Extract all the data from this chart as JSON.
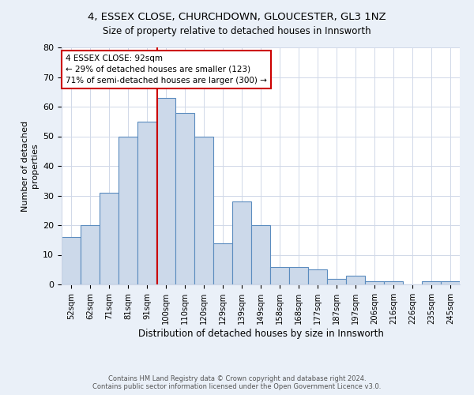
{
  "title1": "4, ESSEX CLOSE, CHURCHDOWN, GLOUCESTER, GL3 1NZ",
  "title2": "Size of property relative to detached houses in Innsworth",
  "xlabel": "Distribution of detached houses by size in Innsworth",
  "ylabel": "Number of detached\nproperties",
  "bar_labels": [
    "52sqm",
    "62sqm",
    "71sqm",
    "81sqm",
    "91sqm",
    "100sqm",
    "110sqm",
    "120sqm",
    "129sqm",
    "139sqm",
    "149sqm",
    "158sqm",
    "168sqm",
    "177sqm",
    "187sqm",
    "197sqm",
    "206sqm",
    "216sqm",
    "226sqm",
    "235sqm",
    "245sqm"
  ],
  "bar_values": [
    16,
    20,
    31,
    50,
    55,
    63,
    58,
    50,
    14,
    28,
    20,
    6,
    6,
    5,
    2,
    3,
    1,
    1,
    0,
    1,
    1
  ],
  "bar_color": "#ccd9ea",
  "bar_edge_color": "#5b8cbf",
  "vline_x": 4.55,
  "vline_color": "#cc0000",
  "annotation_text": "4 ESSEX CLOSE: 92sqm\n← 29% of detached houses are smaller (123)\n71% of semi-detached houses are larger (300) →",
  "annotation_box_color": "#ffffff",
  "annotation_box_edge_color": "#cc0000",
  "ylim": [
    0,
    80
  ],
  "yticks": [
    0,
    10,
    20,
    30,
    40,
    50,
    60,
    70,
    80
  ],
  "footer1": "Contains HM Land Registry data © Crown copyright and database right 2024.",
  "footer2": "Contains public sector information licensed under the Open Government Licence v3.0.",
  "background_color": "#eaf0f8",
  "plot_background_color": "#ffffff",
  "grid_color": "#d0d8e8"
}
